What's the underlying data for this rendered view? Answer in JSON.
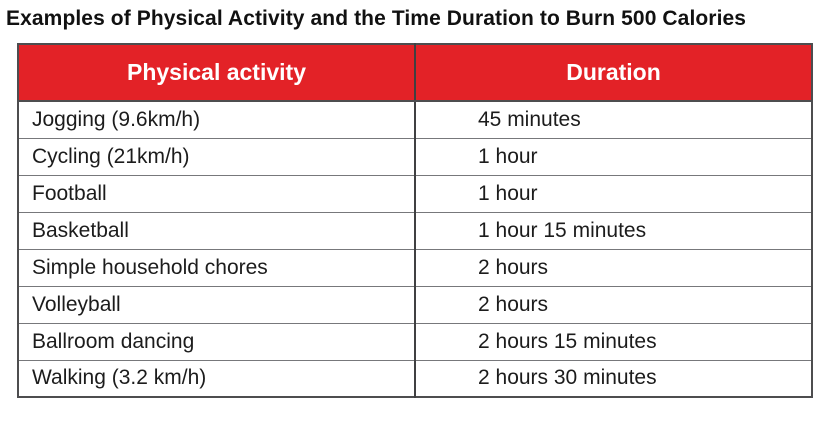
{
  "title": "Examples of Physical Activity and the Time Duration to Burn 500 Calories",
  "table": {
    "headers": [
      "Physical activity",
      "Duration"
    ],
    "rows": [
      {
        "activity": "Jogging (9.6km/h)",
        "duration": "45 minutes"
      },
      {
        "activity": "Cycling (21km/h)",
        "duration": "1 hour"
      },
      {
        "activity": "Football",
        "duration": "1 hour"
      },
      {
        "activity": "Basketball",
        "duration": "1 hour 15 minutes"
      },
      {
        "activity": "Simple household chores",
        "duration": "2 hours"
      },
      {
        "activity": "Volleyball",
        "duration": "2 hours"
      },
      {
        "activity": "Ballroom dancing",
        "duration": "2 hours 15 minutes"
      },
      {
        "activity": "Walking (3.2 km/h)",
        "duration": "2 hours 30 minutes"
      }
    ]
  },
  "colors": {
    "header_bg": "#e32227",
    "header_text": "#ffffff",
    "body_text": "#1c1c1c",
    "outer_border": "#4d4d4f",
    "inner_border": "#77787b"
  },
  "chart_data": {
    "type": "table",
    "title": "Examples of Physical Activity and the Time Duration to Burn 500 Calories",
    "columns": [
      "Physical activity",
      "Duration"
    ],
    "rows": [
      [
        "Jogging (9.6km/h)",
        "45 minutes"
      ],
      [
        "Cycling (21km/h)",
        "1 hour"
      ],
      [
        "Football",
        "1 hour"
      ],
      [
        "Basketball",
        "1 hour 15 minutes"
      ],
      [
        "Simple household chores",
        "2 hours"
      ],
      [
        "Volleyball",
        "2 hours"
      ],
      [
        "Ballroom dancing",
        "2 hours 15 minutes"
      ],
      [
        "Walking (3.2 km/h)",
        "2 hours 30 minutes"
      ]
    ],
    "duration_minutes": [
      45,
      60,
      60,
      75,
      120,
      120,
      135,
      150
    ],
    "calories_burned": 500,
    "layout_hints": {
      "header_fill": "#e32227",
      "header_text_color": "#ffffff",
      "grid": true
    }
  }
}
